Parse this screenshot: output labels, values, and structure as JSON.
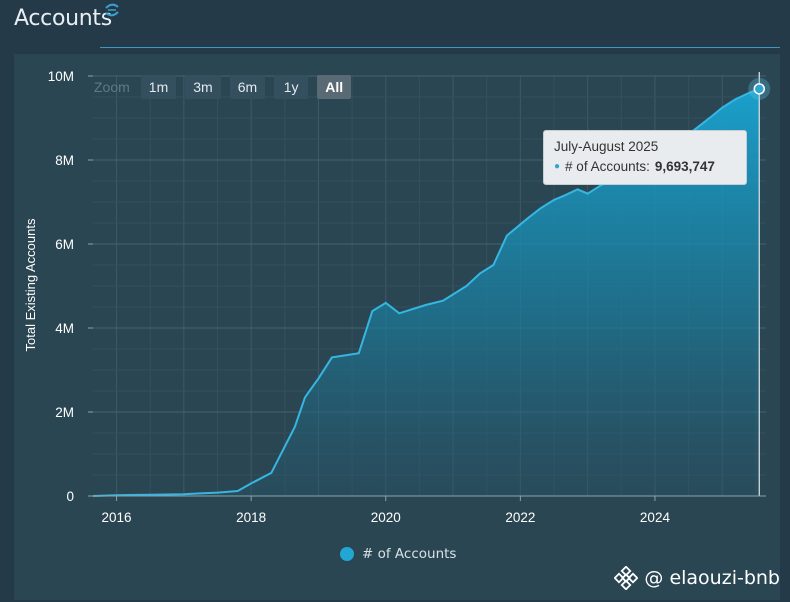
{
  "header": {
    "title": "Accounts"
  },
  "zoom": {
    "label": "Zoom",
    "buttons": [
      "1m",
      "3m",
      "6m",
      "1y",
      "All"
    ],
    "active": "All"
  },
  "tooltip": {
    "title": "July-August 2025",
    "series": "# of Accounts:",
    "value": "9,693,747"
  },
  "legend": {
    "label": "# of Accounts"
  },
  "watermark": {
    "text": "@ elaouzi-bnb"
  },
  "colors": {
    "area_top": "#1aa2cf",
    "line": "#36b6e2",
    "background": "#2b4653",
    "accent": "#3fa9d4"
  },
  "icons": {
    "watermark": "binance-logo-icon",
    "title": "spinner-logo-icon"
  },
  "chart_data": {
    "type": "area",
    "title": "Accounts",
    "xlabel": "",
    "ylabel": "Total Existing Accounts",
    "xlim": [
      2015.65,
      2025.65
    ],
    "ylim": [
      0,
      10000000
    ],
    "x_ticks": [
      2016,
      2018,
      2020,
      2022,
      2024
    ],
    "y_ticks": [
      0,
      2000000,
      4000000,
      6000000,
      8000000,
      10000000
    ],
    "y_tick_labels": [
      "0",
      "2M",
      "4M",
      "6M",
      "8M",
      "10M"
    ],
    "grid": true,
    "legend_position": "bottom-center",
    "series": [
      {
        "name": "# of Accounts",
        "x": [
          2015.65,
          2016.0,
          2016.5,
          2017.0,
          2017.2,
          2017.5,
          2017.8,
          2018.0,
          2018.3,
          2018.65,
          2018.8,
          2019.0,
          2019.2,
          2019.6,
          2019.8,
          2020.0,
          2020.2,
          2020.4,
          2020.6,
          2020.85,
          2021.0,
          2021.2,
          2021.4,
          2021.6,
          2021.8,
          2021.95,
          2022.1,
          2022.3,
          2022.5,
          2022.65,
          2022.85,
          2023.0,
          2023.2,
          2023.4,
          2023.6,
          2023.8,
          2024.0,
          2024.2,
          2024.45,
          2024.65,
          2024.85,
          2025.0,
          2025.2,
          2025.4,
          2025.55
        ],
        "y": [
          0,
          20000,
          30000,
          40000,
          60000,
          80000,
          120000,
          300000,
          550000,
          1650000,
          2350000,
          2800000,
          3300000,
          3400000,
          4400000,
          4600000,
          4350000,
          4450000,
          4550000,
          4650000,
          4800000,
          5000000,
          5300000,
          5500000,
          6200000,
          6400000,
          6600000,
          6850000,
          7050000,
          7150000,
          7300000,
          7200000,
          7400000,
          7550000,
          7650000,
          7800000,
          8000000,
          8250000,
          8550000,
          8800000,
          9050000,
          9250000,
          9450000,
          9600000,
          9693747
        ]
      }
    ]
  }
}
